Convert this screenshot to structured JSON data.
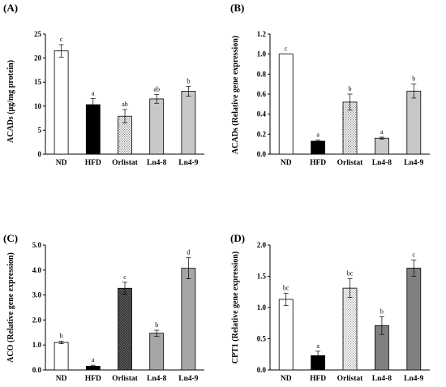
{
  "colors": {
    "white": "#ffffff",
    "black": "#000000",
    "light_gray": "#c8c8c8",
    "mid_gray": "#a6a6a6",
    "dark_gray": "#808080",
    "hatch_light": "#9a9a9a",
    "hatch_dark": "#404040"
  },
  "chart_data": [
    {
      "panel": "(A)",
      "type": "bar",
      "ylabel": "ACADs (μg/mg protein)",
      "categories": [
        "ND",
        "HFD",
        "Orlistat",
        "Ln4-8",
        "Ln4-9"
      ],
      "values": [
        21.5,
        10.3,
        7.9,
        11.5,
        13.1
      ],
      "errors": [
        1.3,
        1.3,
        1.4,
        0.9,
        1.0
      ],
      "letters": [
        "c",
        "a",
        "ab",
        "ab",
        "b"
      ],
      "fills": [
        "white",
        "black",
        "dots",
        "light_gray",
        "light_gray"
      ],
      "ylim": [
        0,
        25
      ],
      "yticks": [
        0,
        5,
        10,
        15,
        20,
        25
      ],
      "ytick_labels": [
        "0",
        "5",
        "10",
        "15",
        "20",
        "25"
      ]
    },
    {
      "panel": "(B)",
      "type": "bar",
      "ylabel": "ACADs (Relative gene expression)",
      "categories": [
        "ND",
        "HFD",
        "Orlistat",
        "Ln4-8",
        "Ln4-9"
      ],
      "values": [
        1.0,
        0.13,
        0.52,
        0.16,
        0.63
      ],
      "errors": [
        0.0,
        0.01,
        0.08,
        0.01,
        0.07
      ],
      "letters": [
        "c",
        "a",
        "b",
        "a",
        "b"
      ],
      "fills": [
        "white",
        "black",
        "dots",
        "light_gray",
        "light_gray"
      ],
      "ylim": [
        0,
        1.2
      ],
      "yticks": [
        0,
        0.2,
        0.4,
        0.6,
        0.8,
        1.0,
        1.2
      ],
      "ytick_labels": [
        "0.0",
        "0.2",
        "0.4",
        "0.6",
        "0.8",
        "1.0",
        "1.2"
      ]
    },
    {
      "panel": "(C)",
      "type": "bar",
      "ylabel": "ACO (Relative gene expression)",
      "categories": [
        "ND",
        "HFD",
        "Orlistat",
        "Ln4-8",
        "Ln4-9"
      ],
      "values": [
        1.1,
        0.15,
        3.27,
        1.47,
        4.07
      ],
      "errors": [
        0.05,
        0.04,
        0.24,
        0.12,
        0.42
      ],
      "letters": [
        "b",
        "a",
        "c",
        "b",
        "d"
      ],
      "fills": [
        "white",
        "black",
        "crosshatch",
        "mid_gray",
        "mid_gray"
      ],
      "ylim": [
        0,
        5.0
      ],
      "yticks": [
        0,
        1,
        2,
        3,
        4,
        5
      ],
      "ytick_labels": [
        "0.0",
        "1.0",
        "2.0",
        "3.0",
        "4.0",
        "5.0"
      ]
    },
    {
      "panel": "(D)",
      "type": "bar",
      "ylabel": "CPT1 (Relative gene expression)",
      "categories": [
        "ND",
        "HFD",
        "Orlistat",
        "Ln4-8",
        "Ln4-9"
      ],
      "values": [
        1.13,
        0.23,
        1.31,
        0.71,
        1.63
      ],
      "errors": [
        0.1,
        0.07,
        0.15,
        0.14,
        0.13
      ],
      "letters": [
        "bc",
        "a",
        "bc",
        "b",
        "c"
      ],
      "fills": [
        "white",
        "black",
        "dots_light",
        "dark_gray",
        "dark_gray"
      ],
      "ylim": [
        0,
        2.0
      ],
      "yticks": [
        0,
        0.5,
        1.0,
        1.5,
        2.0
      ],
      "ytick_labels": [
        "0.0",
        "0.5",
        "1.0",
        "1.5",
        "2.0"
      ]
    }
  ]
}
